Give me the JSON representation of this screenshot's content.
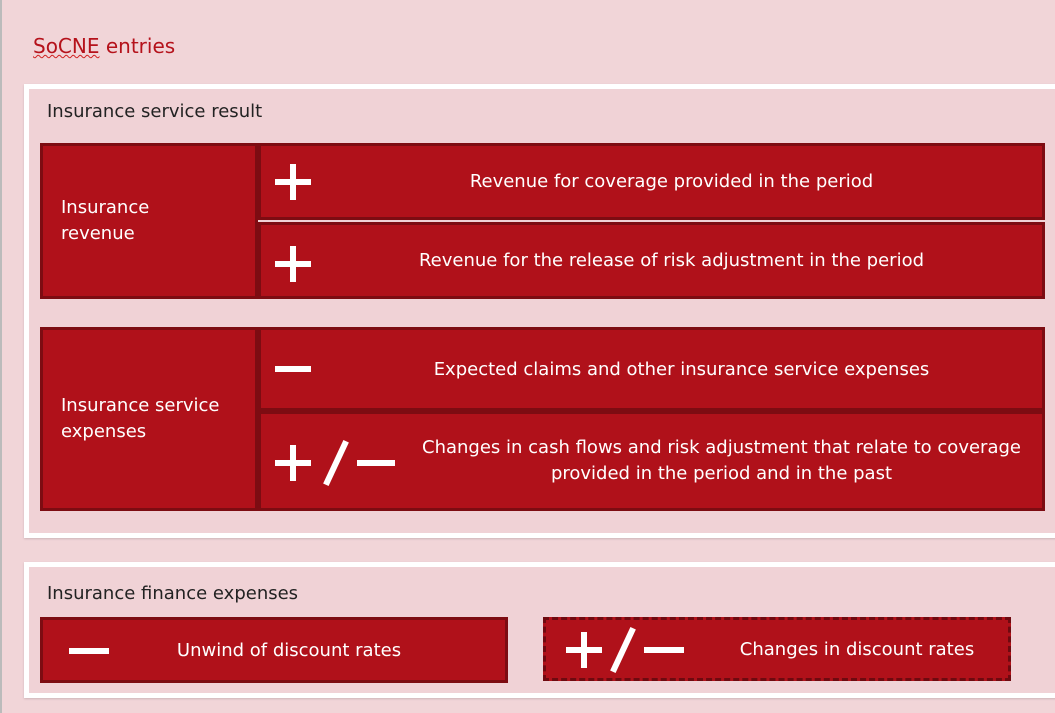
{
  "title_underlined": "SoCNE",
  "title_rest": "entries",
  "sections": [
    {
      "label": "Insurance service result",
      "groups": [
        {
          "label": "Insurance revenue",
          "items": [
            "Revenue for coverage provided in the period",
            "Revenue for the release of risk adjustment in the period"
          ]
        },
        {
          "label": "Insurance service expenses",
          "items": [
            "Expected claims and other insurance service expenses",
            "Changes in cash flows and risk adjustment that relate to coverage provided in the period and in the past"
          ]
        }
      ]
    },
    {
      "label": "Insurance finance expenses",
      "items": [
        "Unwind of discount rates",
        "Changes in discount rates"
      ]
    }
  ]
}
